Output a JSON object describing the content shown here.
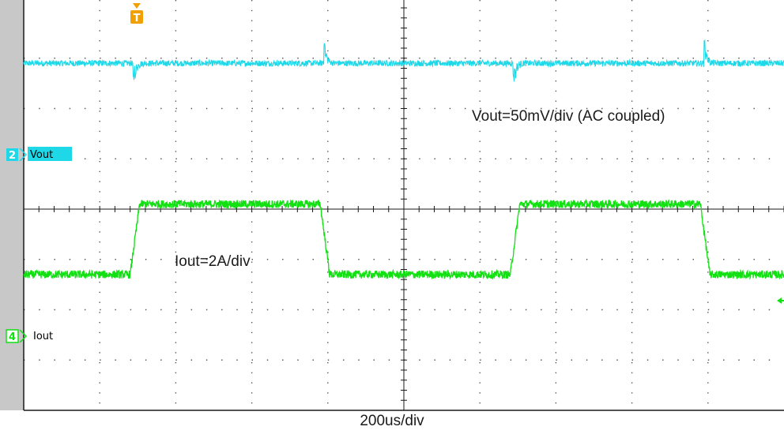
{
  "chart_data": {
    "type": "line",
    "title": "",
    "xlabel": "200us/div",
    "ylabel": "",
    "time_per_div_us": 200,
    "divisions": {
      "horizontal": 10,
      "vertical": 8
    },
    "x_range_us": [
      0,
      2000
    ],
    "grid": true,
    "trigger_marker": "T",
    "series": [
      {
        "name": "Vout",
        "channel": "2",
        "scale_label": "Vout=50mV/div (AC coupled)",
        "color": "#1ed8e8",
        "baseline_div": 2.9,
        "noise_div": 0.06,
        "events": [
          {
            "t_us": 290,
            "kind": "dip",
            "amplitude_div": 0.32,
            "ringing": 0.22
          },
          {
            "t_us": 790,
            "kind": "spike",
            "amplitude_div": 0.4,
            "ringing": 0.15
          },
          {
            "t_us": 1290,
            "kind": "dip",
            "amplitude_div": 0.32,
            "ringing": 0.22
          },
          {
            "t_us": 1790,
            "kind": "spike",
            "amplitude_div": 0.4,
            "ringing": 0.15
          }
        ]
      },
      {
        "name": "Iout",
        "channel": "4",
        "scale_label": "Iout=2A/div",
        "color": "#12e012",
        "low_level_div": -1.3,
        "high_level_div": 0.1,
        "noise_div": 0.08,
        "edges": [
          {
            "t_us": 280,
            "level": "high",
            "duration_us": 25
          },
          {
            "t_us": 780,
            "level": "low",
            "duration_us": 25
          },
          {
            "t_us": 1280,
            "level": "high",
            "duration_us": 25
          },
          {
            "t_us": 1780,
            "level": "low",
            "duration_us": 25
          }
        ]
      }
    ]
  },
  "channel_markers": {
    "ch2": {
      "number": "2",
      "label": "Vout",
      "color": "#1ed8e8"
    },
    "ch4": {
      "number": "4",
      "label": "Iout",
      "color": "#12e012"
    }
  },
  "colors": {
    "grid_line": "#1a1a1a",
    "left_bar": "#c8c8c8",
    "trigger": "#f0a000"
  }
}
